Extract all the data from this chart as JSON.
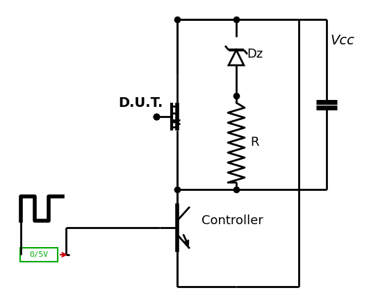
{
  "background": "#ffffff",
  "line_color": "#000000",
  "line_width": 2.0,
  "dot_size": 6,
  "text_color": "#000000",
  "green_color": "#00aa00",
  "red_color": "#cc0000",
  "labels": {
    "DUT": "D.U.T.",
    "Dz": "Dz",
    "R": "R",
    "Vcc": "Vcc",
    "Controller": "Controller",
    "voltage": "0/5V"
  },
  "figsize": [
    5.44,
    4.38
  ],
  "dpi": 100
}
